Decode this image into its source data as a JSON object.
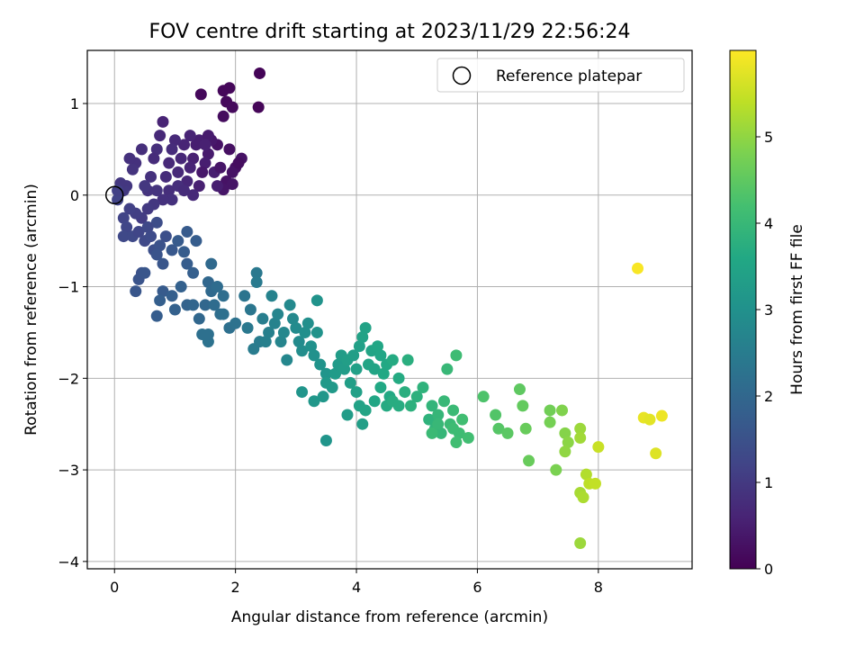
{
  "chart_data": {
    "type": "scatter",
    "title": "FOV centre drift starting at 2023/11/29 22:56:24",
    "xlabel": "Angular distance from reference (arcmin)",
    "ylabel": "Rotation from reference (arcmin)",
    "colorbar_label": "Hours from first FF file",
    "colormap": "viridis",
    "xlim": [
      -0.45,
      9.55
    ],
    "ylim": [
      -4.08,
      1.58
    ],
    "clim": [
      0,
      6.0
    ],
    "xticks": [
      0,
      2,
      4,
      6,
      8
    ],
    "yticks": [
      -4,
      -3,
      -2,
      -1,
      0,
      1
    ],
    "colorbar_ticks": [
      0,
      1,
      2,
      3,
      4,
      5
    ],
    "grid": true,
    "legend": {
      "position": "top-right",
      "entries": [
        "Reference platepar"
      ]
    },
    "reference_point": {
      "x": 0,
      "y": 0
    },
    "series": [
      {
        "points": [
          [
            2.4,
            1.33,
            0.05
          ],
          [
            2.38,
            0.96,
            0.08
          ],
          [
            1.8,
            1.14,
            0.1
          ],
          [
            1.85,
            1.02,
            0.12
          ],
          [
            1.95,
            0.96,
            0.15
          ],
          [
            1.43,
            1.1,
            0.12
          ],
          [
            1.8,
            0.86,
            0.18
          ],
          [
            1.9,
            1.17,
            0.1
          ],
          [
            1.9,
            0.5,
            0.25
          ],
          [
            2.1,
            0.4,
            0.3
          ],
          [
            2.0,
            0.3,
            0.25
          ],
          [
            1.95,
            0.25,
            0.3
          ],
          [
            2.05,
            0.35,
            0.2
          ],
          [
            1.85,
            0.15,
            0.3
          ],
          [
            1.95,
            0.12,
            0.35
          ],
          [
            1.8,
            0.06,
            0.35
          ],
          [
            1.7,
            0.55,
            0.3
          ],
          [
            1.6,
            0.6,
            0.4
          ],
          [
            1.55,
            0.45,
            0.45
          ],
          [
            1.5,
            0.35,
            0.5
          ],
          [
            1.45,
            0.25,
            0.4
          ],
          [
            1.4,
            0.1,
            0.55
          ],
          [
            1.65,
            0.25,
            0.5
          ],
          [
            1.7,
            0.1,
            0.5
          ],
          [
            1.75,
            0.3,
            0.35
          ],
          [
            1.35,
            0.55,
            0.5
          ],
          [
            1.3,
            0.4,
            0.55
          ],
          [
            1.25,
            0.3,
            0.6
          ],
          [
            1.2,
            0.15,
            0.65
          ],
          [
            1.15,
            0.55,
            0.6
          ],
          [
            1.1,
            0.4,
            0.65
          ],
          [
            1.05,
            0.25,
            0.7
          ],
          [
            1.0,
            0.6,
            0.7
          ],
          [
            0.95,
            0.5,
            0.75
          ],
          [
            0.9,
            0.35,
            0.7
          ],
          [
            0.85,
            0.2,
            0.75
          ],
          [
            0.8,
            0.8,
            0.6
          ],
          [
            0.75,
            0.65,
            0.7
          ],
          [
            0.7,
            0.5,
            0.8
          ],
          [
            0.65,
            0.4,
            0.75
          ],
          [
            0.6,
            0.2,
            0.85
          ],
          [
            0.55,
            0.05,
            0.9
          ],
          [
            0.5,
            0.1,
            0.95
          ],
          [
            0.45,
            0.5,
            0.8
          ],
          [
            0.35,
            0.35,
            0.85
          ],
          [
            0.3,
            0.28,
            0.9
          ],
          [
            0.25,
            0.4,
            0.85
          ],
          [
            0.2,
            0.1,
            0.95
          ],
          [
            0.15,
            0.05,
            1.0
          ],
          [
            0.1,
            0.13,
            0.95
          ],
          [
            0.9,
            0.05,
            0.8
          ],
          [
            0.95,
            -0.05,
            0.85
          ],
          [
            1.05,
            0.1,
            0.8
          ],
          [
            1.3,
            0.0,
            0.7
          ],
          [
            1.4,
            0.6,
            0.5
          ],
          [
            1.55,
            0.65,
            0.45
          ],
          [
            1.5,
            0.55,
            0.55
          ],
          [
            1.25,
            0.65,
            0.6
          ],
          [
            1.15,
            0.05,
            0.75
          ],
          [
            0.8,
            -0.05,
            0.85
          ],
          [
            0.7,
            0.05,
            0.9
          ],
          [
            0.65,
            -0.1,
            0.95
          ],
          [
            0.55,
            -0.15,
            1.0
          ],
          [
            0.45,
            -0.25,
            1.05
          ],
          [
            0.35,
            -0.2,
            1.1
          ],
          [
            0.25,
            -0.15,
            1.15
          ],
          [
            0.15,
            -0.25,
            1.2
          ],
          [
            0.05,
            -0.05,
            1.2
          ],
          [
            0.05,
            0.05,
            1.15
          ],
          [
            0.2,
            -0.35,
            1.25
          ],
          [
            0.15,
            -0.45,
            1.3
          ],
          [
            0.3,
            -0.45,
            1.3
          ],
          [
            0.4,
            -0.4,
            1.25
          ],
          [
            0.5,
            -0.5,
            1.3
          ],
          [
            0.6,
            -0.45,
            1.35
          ],
          [
            0.7,
            -0.3,
            1.4
          ],
          [
            0.65,
            -0.6,
            1.45
          ],
          [
            0.75,
            -0.55,
            1.5
          ],
          [
            0.85,
            -0.45,
            1.45
          ],
          [
            0.55,
            -0.35,
            1.3
          ],
          [
            0.45,
            -0.85,
            1.5
          ],
          [
            0.4,
            -0.92,
            1.55
          ],
          [
            0.35,
            -1.05,
            1.6
          ],
          [
            0.5,
            -0.85,
            1.6
          ],
          [
            0.7,
            -0.65,
            1.55
          ],
          [
            0.8,
            -0.75,
            1.6
          ],
          [
            0.95,
            -0.6,
            1.65
          ],
          [
            1.05,
            -0.5,
            1.7
          ],
          [
            1.15,
            -0.62,
            1.75
          ],
          [
            1.2,
            -0.75,
            1.75
          ],
          [
            1.3,
            -0.85,
            1.8
          ],
          [
            1.35,
            -0.5,
            1.75
          ],
          [
            1.2,
            -0.4,
            1.7
          ],
          [
            0.8,
            -1.05,
            1.7
          ],
          [
            0.75,
            -1.15,
            1.8
          ],
          [
            0.7,
            -1.32,
            1.75
          ],
          [
            0.95,
            -1.1,
            1.8
          ],
          [
            1.0,
            -1.25,
            1.85
          ],
          [
            1.1,
            -1.0,
            1.85
          ],
          [
            1.2,
            -1.2,
            1.9
          ],
          [
            1.3,
            -1.2,
            1.95
          ],
          [
            1.4,
            -1.35,
            2.0
          ],
          [
            1.5,
            -1.2,
            2.0
          ],
          [
            1.55,
            -0.95,
            2.0
          ],
          [
            1.6,
            -0.75,
            2.05
          ],
          [
            1.6,
            -1.05,
            2.05
          ],
          [
            1.65,
            -1.2,
            2.1
          ],
          [
            1.7,
            -1.0,
            2.1
          ],
          [
            1.75,
            -1.3,
            2.15
          ],
          [
            1.8,
            -1.1,
            2.15
          ],
          [
            1.45,
            -1.52,
            2.2
          ],
          [
            1.55,
            -1.6,
            2.25
          ],
          [
            1.55,
            -1.52,
            2.2
          ],
          [
            1.8,
            -1.3,
            2.2
          ],
          [
            1.9,
            -1.45,
            2.2
          ],
          [
            2.0,
            -1.4,
            2.25
          ],
          [
            2.15,
            -1.1,
            2.3
          ],
          [
            2.25,
            -1.25,
            2.35
          ],
          [
            2.35,
            -0.85,
            2.4
          ],
          [
            2.35,
            -0.95,
            2.45
          ],
          [
            2.2,
            -1.45,
            2.4
          ],
          [
            2.3,
            -1.68,
            2.5
          ],
          [
            2.4,
            -1.6,
            2.5
          ],
          [
            2.45,
            -1.35,
            2.55
          ],
          [
            2.5,
            -1.6,
            2.6
          ],
          [
            2.55,
            -1.5,
            2.6
          ],
          [
            2.6,
            -1.1,
            2.65
          ],
          [
            2.65,
            -1.4,
            2.65
          ],
          [
            2.7,
            -1.3,
            2.7
          ],
          [
            2.75,
            -1.6,
            2.7
          ],
          [
            2.8,
            -1.5,
            2.75
          ],
          [
            2.85,
            -1.8,
            2.75
          ],
          [
            2.9,
            -1.2,
            2.8
          ],
          [
            2.95,
            -1.35,
            2.8
          ],
          [
            3.0,
            -1.45,
            2.85
          ],
          [
            3.05,
            -1.6,
            2.85
          ],
          [
            3.1,
            -1.7,
            2.9
          ],
          [
            3.15,
            -1.5,
            2.95
          ],
          [
            3.2,
            -1.4,
            2.95
          ],
          [
            3.25,
            -1.65,
            3.0
          ],
          [
            3.3,
            -1.75,
            3.0
          ],
          [
            3.35,
            -1.5,
            3.05
          ],
          [
            3.35,
            -1.15,
            3.05
          ],
          [
            3.4,
            -1.85,
            3.05
          ],
          [
            3.5,
            -1.95,
            3.1
          ],
          [
            3.1,
            -2.15,
            3.1
          ],
          [
            3.3,
            -2.25,
            3.15
          ],
          [
            3.45,
            -2.2,
            3.15
          ],
          [
            3.5,
            -2.05,
            3.2
          ],
          [
            3.6,
            -2.1,
            3.2
          ],
          [
            3.65,
            -1.95,
            3.25
          ],
          [
            3.7,
            -1.85,
            3.25
          ],
          [
            3.75,
            -1.75,
            3.3
          ],
          [
            3.8,
            -1.9,
            3.3
          ],
          [
            3.85,
            -1.8,
            3.35
          ],
          [
            3.9,
            -2.05,
            3.35
          ],
          [
            3.95,
            -1.75,
            3.35
          ],
          [
            4.0,
            -1.9,
            3.4
          ],
          [
            4.05,
            -1.65,
            3.4
          ],
          [
            4.1,
            -1.55,
            3.45
          ],
          [
            4.15,
            -1.45,
            3.45
          ],
          [
            4.2,
            -1.85,
            3.5
          ],
          [
            4.25,
            -1.7,
            3.5
          ],
          [
            4.3,
            -1.9,
            3.5
          ],
          [
            4.35,
            -1.65,
            3.55
          ],
          [
            4.4,
            -1.75,
            3.55
          ],
          [
            4.45,
            -1.95,
            3.6
          ],
          [
            4.5,
            -1.85,
            3.6
          ],
          [
            4.55,
            -2.2,
            3.6
          ],
          [
            4.6,
            -1.8,
            3.65
          ],
          [
            4.7,
            -2.0,
            3.65
          ],
          [
            4.0,
            -2.15,
            3.4
          ],
          [
            4.05,
            -2.3,
            3.45
          ],
          [
            4.15,
            -2.35,
            3.5
          ],
          [
            4.3,
            -2.25,
            3.55
          ],
          [
            4.4,
            -2.1,
            3.6
          ],
          [
            4.5,
            -2.3,
            3.65
          ],
          [
            4.6,
            -2.25,
            3.7
          ],
          [
            4.7,
            -2.3,
            3.7
          ],
          [
            4.8,
            -2.15,
            3.75
          ],
          [
            4.85,
            -1.8,
            3.75
          ],
          [
            4.9,
            -2.3,
            3.8
          ],
          [
            5.0,
            -2.2,
            3.8
          ],
          [
            5.1,
            -2.1,
            3.85
          ],
          [
            5.2,
            -2.45,
            3.85
          ],
          [
            5.25,
            -2.3,
            3.9
          ],
          [
            5.3,
            -2.55,
            3.9
          ],
          [
            5.35,
            -2.4,
            3.95
          ],
          [
            5.4,
            -2.6,
            3.95
          ],
          [
            5.45,
            -2.25,
            4.0
          ],
          [
            5.5,
            -1.9,
            4.0
          ],
          [
            5.55,
            -2.5,
            4.05
          ],
          [
            5.6,
            -2.35,
            4.05
          ],
          [
            5.65,
            -1.75,
            4.1
          ],
          [
            5.7,
            -2.6,
            4.1
          ],
          [
            5.75,
            -2.45,
            4.15
          ],
          [
            5.85,
            -2.65,
            4.15
          ],
          [
            5.25,
            -2.6,
            4.05
          ],
          [
            5.35,
            -2.5,
            4.0
          ],
          [
            5.6,
            -2.55,
            4.1
          ],
          [
            5.65,
            -2.7,
            4.15
          ],
          [
            3.5,
            -2.68,
            3.1
          ],
          [
            3.85,
            -2.4,
            3.3
          ],
          [
            4.1,
            -2.5,
            3.35
          ],
          [
            6.1,
            -2.2,
            4.3
          ],
          [
            6.3,
            -2.4,
            4.35
          ],
          [
            6.35,
            -2.55,
            4.4
          ],
          [
            6.5,
            -2.6,
            4.45
          ],
          [
            6.7,
            -2.12,
            4.5
          ],
          [
            6.75,
            -2.3,
            4.55
          ],
          [
            6.8,
            -2.55,
            4.6
          ],
          [
            6.85,
            -2.9,
            4.6
          ],
          [
            7.2,
            -2.35,
            4.7
          ],
          [
            7.2,
            -2.48,
            4.75
          ],
          [
            7.3,
            -3.0,
            4.8
          ],
          [
            7.4,
            -2.35,
            4.85
          ],
          [
            7.45,
            -2.6,
            4.9
          ],
          [
            7.5,
            -2.7,
            4.95
          ],
          [
            7.45,
            -2.8,
            5.0
          ],
          [
            7.7,
            -2.55,
            5.1
          ],
          [
            7.7,
            -2.65,
            5.15
          ],
          [
            7.7,
            -3.25,
            5.2
          ],
          [
            7.75,
            -3.3,
            5.25
          ],
          [
            7.8,
            -3.05,
            5.3
          ],
          [
            7.85,
            -3.15,
            5.4
          ],
          [
            7.95,
            -3.15,
            5.45
          ],
          [
            8.0,
            -2.75,
            5.5
          ],
          [
            7.7,
            -3.8,
            5.1
          ],
          [
            8.65,
            -0.8,
            5.95
          ],
          [
            8.75,
            -2.43,
            5.8
          ],
          [
            8.85,
            -2.45,
            5.75
          ],
          [
            8.95,
            -2.82,
            5.7
          ],
          [
            9.05,
            -2.41,
            5.85
          ]
        ]
      }
    ]
  }
}
